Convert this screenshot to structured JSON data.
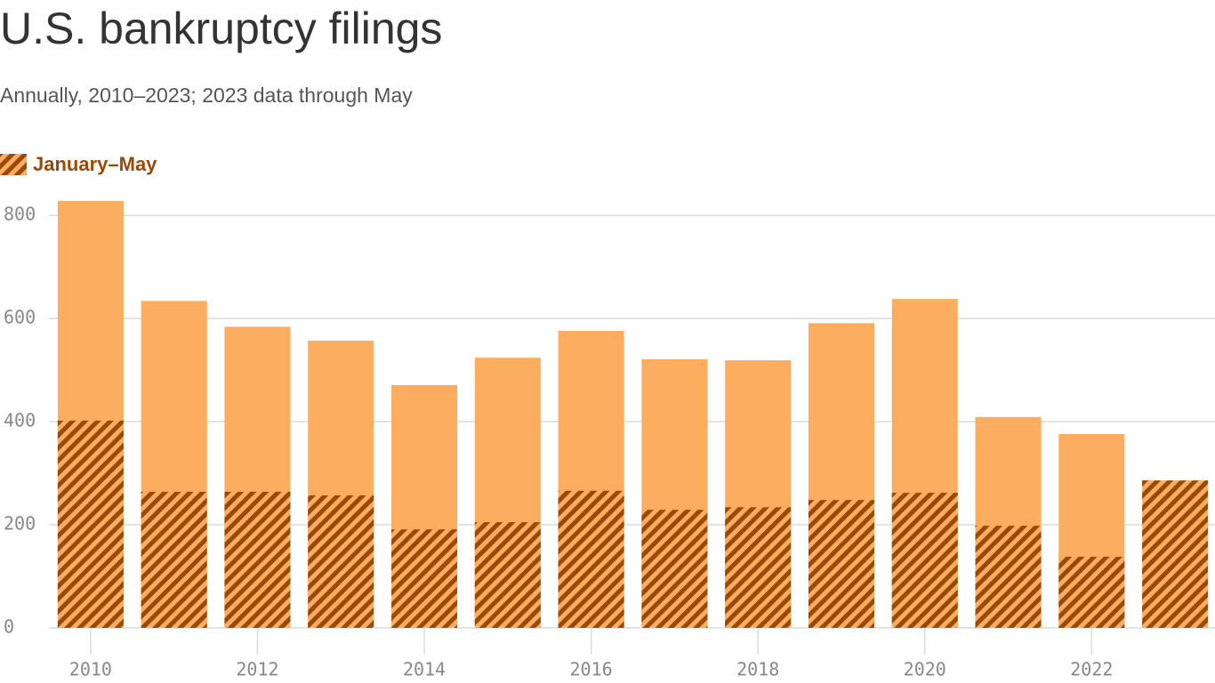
{
  "chart_data": {
    "type": "bar",
    "title": "U.S. bankruptcy filings",
    "subtitle": "Annually, 2010–2023; 2023 data through May",
    "x": [
      2010,
      2011,
      2012,
      2013,
      2014,
      2015,
      2016,
      2017,
      2018,
      2019,
      2020,
      2021,
      2022,
      2023
    ],
    "values": [
      828,
      634,
      584,
      557,
      471,
      524,
      576,
      521,
      519,
      591,
      638,
      409,
      376,
      null
    ],
    "color": "#fcad60",
    "series": [
      {
        "name": "January–May",
        "color": "#9a4a08",
        "values": [
          402,
          264,
          264,
          257,
          191,
          205,
          266,
          229,
          234,
          248,
          262,
          198,
          138,
          286
        ]
      }
    ],
    "xlim": [
      2009.5,
      2023.5
    ],
    "xticks": [
      2010,
      2012,
      2014,
      2016,
      2018,
      2020,
      2022
    ],
    "ylim": [
      0,
      840
    ],
    "yticks": [
      0,
      200,
      400,
      600,
      800
    ],
    "grid": true
  }
}
